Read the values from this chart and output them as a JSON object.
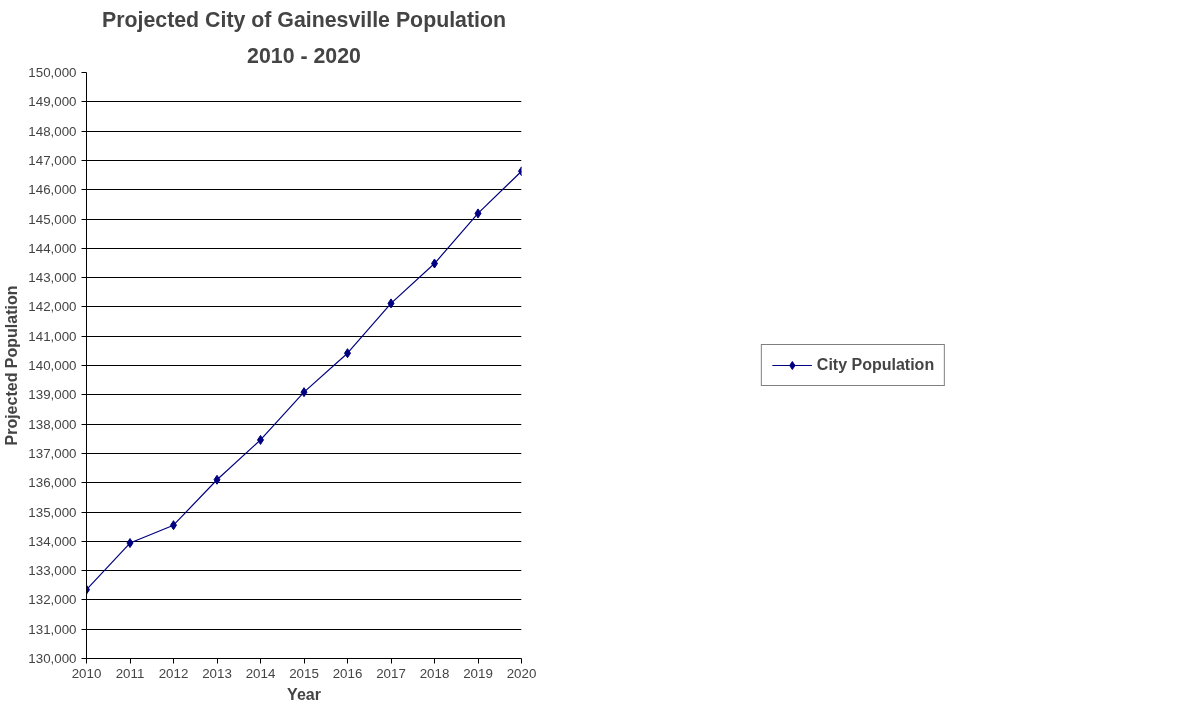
{
  "chart_data": {
    "type": "line",
    "title": "Projected City of Gainesville Population",
    "subtitle": "2010 - 2020",
    "xlabel": "Year",
    "ylabel": "Projected Population",
    "x": [
      2010,
      2011,
      2012,
      2013,
      2014,
      2015,
      2016,
      2017,
      2018,
      2019,
      2020
    ],
    "series": [
      {
        "name": "City Population",
        "color": "#000080",
        "values": [
          132350,
          133940,
          134550,
          136100,
          137460,
          139090,
          140420,
          142120,
          143480,
          145190,
          146630
        ]
      }
    ],
    "xlim": [
      2010,
      2020
    ],
    "xticks": [
      2010,
      2011,
      2012,
      2013,
      2014,
      2015,
      2016,
      2017,
      2018,
      2019,
      2020
    ],
    "ylim": [
      130000,
      150000
    ],
    "yticks": [
      {
        "value": 130000,
        "label": "130,000"
      },
      {
        "value": 131000,
        "label": "131,000"
      },
      {
        "value": 132000,
        "label": "132,000"
      },
      {
        "value": 133000,
        "label": "133,000"
      },
      {
        "value": 134000,
        "label": "134,000"
      },
      {
        "value": 135000,
        "label": "135,000"
      },
      {
        "value": 136000,
        "label": "136,000"
      },
      {
        "value": 137000,
        "label": "137,000"
      },
      {
        "value": 138000,
        "label": "138,000"
      },
      {
        "value": 139000,
        "label": "139,000"
      },
      {
        "value": 140000,
        "label": "140,000"
      },
      {
        "value": 141000,
        "label": "141,000"
      },
      {
        "value": 142000,
        "label": "142,000"
      },
      {
        "value": 143000,
        "label": "143,000"
      },
      {
        "value": 144000,
        "label": "144,000"
      },
      {
        "value": 145000,
        "label": "145,000"
      },
      {
        "value": 146000,
        "label": "146,000"
      },
      {
        "value": 147000,
        "label": "147,000"
      },
      {
        "value": 148000,
        "label": "148,000"
      },
      {
        "value": 149000,
        "label": "149,000"
      },
      {
        "value": 150000,
        "label": "150,000"
      }
    ],
    "grid": "y",
    "legend": "right",
    "marker": "diamond",
    "line_style": "solid"
  }
}
